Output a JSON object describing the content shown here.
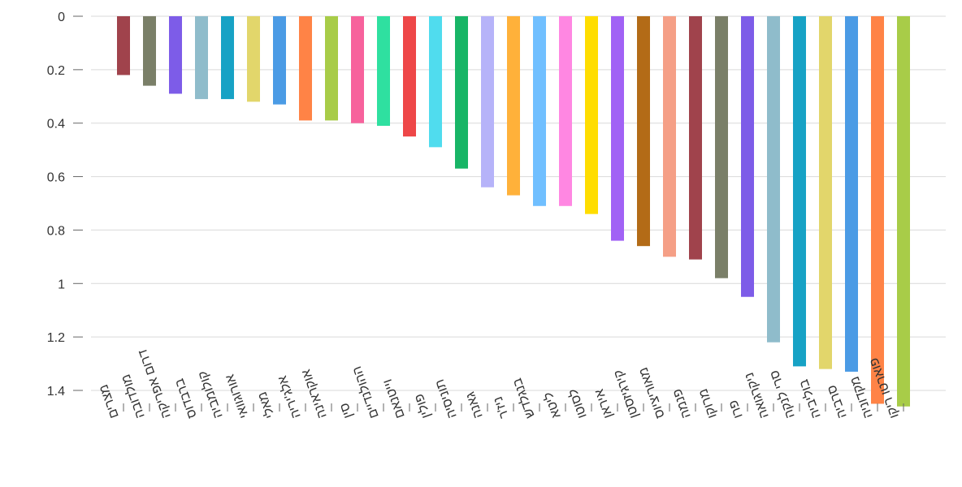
{
  "chart_data": {
    "type": "bar",
    "orientation": "vertical",
    "y_axis_inverted": true,
    "ylim": [
      0,
      1.46
    ],
    "y_ticks": [
      0,
      0.2,
      0.4,
      0.6,
      0.8,
      1,
      1.2,
      1.4
    ],
    "y_tick_labels": [
      "0",
      "0.2",
      "0.4",
      "0.6",
      "0.8",
      "1",
      "1.2",
      "1.4"
    ],
    "grid": true,
    "categories": [
      "מצרים",
      "מולדובה",
      "דרום אפריקה",
      "ברבדוס",
      "קולומביה",
      "אורוגוואי",
      "מאלי",
      "אלג'יריה",
      "אוקראינה",
      "סין",
      "ההולנדיים",
      "וייטנאם",
      "פולין",
      "תוניסיה",
      "גאנה",
      "ניז'ר",
      "בנגלדש",
      "ליטא",
      "לסוטו",
      "איראן",
      "קירגיזסטן",
      "מאוריציוס",
      "פנמה",
      "מרוקו",
      "פרו",
      "ניקרגואה",
      "סרי לנקה",
      "בוליביה",
      "סרביה",
      "מקדוניה",
      "פוארטו ריקו"
    ],
    "values": [
      0.22,
      0.26,
      0.29,
      0.31,
      0.31,
      0.32,
      0.33,
      0.39,
      0.39,
      0.4,
      0.41,
      0.45,
      0.49,
      0.57,
      0.64,
      0.67,
      0.71,
      0.71,
      0.74,
      0.84,
      0.86,
      0.9,
      0.91,
      0.98,
      1.05,
      1.22,
      1.31,
      1.32,
      1.33,
      1.45,
      1.46
    ],
    "colors": [
      "#a0434c",
      "#7a7f68",
      "#7d5ce8",
      "#8fbccb",
      "#17a2c5",
      "#e2d66b",
      "#4b9be5",
      "#ff8346",
      "#a8cc48",
      "#f7629c",
      "#2fe0a0",
      "#ee4748",
      "#50dcee",
      "#18b566",
      "#b6b3f9",
      "#ffb13a",
      "#70bfff",
      "#ff87e2",
      "#ffdd00",
      "#a162f5",
      "#b36b17",
      "#f59f86",
      "#a0434c",
      "#7a7f68",
      "#7d5ce8",
      "#8fbccb",
      "#17a2c5",
      "#e2d66b",
      "#4b9be5",
      "#ff8346",
      "#a8cc48"
    ]
  }
}
